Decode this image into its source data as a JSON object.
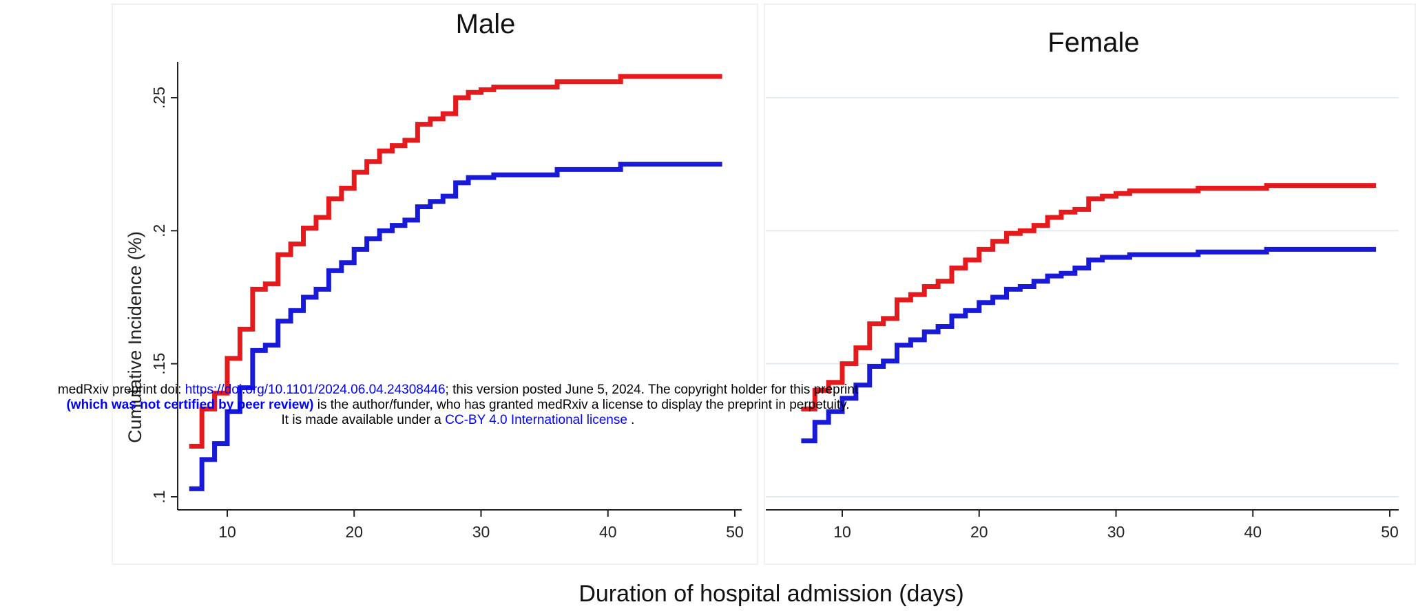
{
  "chart_data": [
    {
      "type": "line",
      "title": "Male",
      "ylabel": "Cumulative Incidence (%)",
      "xlim": [
        7,
        50
      ],
      "ylim": [
        0.1,
        0.265
      ],
      "x_ticks": [
        "10",
        "20",
        "30",
        "40",
        "50"
      ],
      "y_ticks": [
        ".1",
        ".15",
        ".2",
        ".25"
      ],
      "grid": false,
      "series": [
        {
          "color": "#e41a1c",
          "x": [
            7,
            8,
            9,
            10,
            11,
            12,
            13,
            14,
            15,
            16,
            17,
            18,
            19,
            20,
            21,
            22,
            23,
            24,
            25,
            26,
            27,
            28,
            29,
            30,
            31,
            36,
            41,
            49
          ],
          "y": [
            0.119,
            0.133,
            0.139,
            0.152,
            0.163,
            0.178,
            0.18,
            0.191,
            0.195,
            0.201,
            0.205,
            0.212,
            0.216,
            0.222,
            0.226,
            0.23,
            0.232,
            0.234,
            0.24,
            0.242,
            0.244,
            0.25,
            0.252,
            0.253,
            0.254,
            0.256,
            0.258,
            0.258
          ]
        },
        {
          "color": "#1919d8",
          "x": [
            7,
            8,
            9,
            10,
            11,
            12,
            13,
            14,
            15,
            16,
            17,
            18,
            19,
            20,
            21,
            22,
            23,
            24,
            25,
            26,
            27,
            28,
            29,
            30,
            31,
            36,
            41,
            49
          ],
          "y": [
            0.103,
            0.114,
            0.12,
            0.132,
            0.141,
            0.155,
            0.157,
            0.166,
            0.17,
            0.175,
            0.178,
            0.185,
            0.188,
            0.193,
            0.197,
            0.2,
            0.202,
            0.204,
            0.209,
            0.211,
            0.213,
            0.218,
            0.22,
            0.22,
            0.221,
            0.223,
            0.225,
            0.225
          ]
        }
      ]
    },
    {
      "type": "line",
      "title": "Female",
      "xlim": [
        7,
        50
      ],
      "ylim": [
        0.1,
        0.265
      ],
      "x_ticks": [
        "10",
        "20",
        "30",
        "40",
        "50"
      ],
      "grid": true,
      "series": [
        {
          "color": "#e41a1c",
          "x": [
            7,
            8,
            9,
            10,
            11,
            12,
            13,
            14,
            15,
            16,
            17,
            18,
            19,
            20,
            21,
            22,
            23,
            24,
            25,
            26,
            27,
            28,
            29,
            30,
            31,
            36,
            41,
            49
          ],
          "y": [
            0.133,
            0.14,
            0.143,
            0.15,
            0.156,
            0.165,
            0.167,
            0.174,
            0.176,
            0.179,
            0.181,
            0.186,
            0.189,
            0.193,
            0.196,
            0.199,
            0.2,
            0.202,
            0.205,
            0.207,
            0.208,
            0.212,
            0.213,
            0.214,
            0.215,
            0.216,
            0.217,
            0.217
          ]
        },
        {
          "color": "#1919d8",
          "x": [
            7,
            8,
            9,
            10,
            11,
            12,
            13,
            14,
            15,
            16,
            17,
            18,
            19,
            20,
            21,
            22,
            23,
            24,
            25,
            26,
            27,
            28,
            29,
            30,
            31,
            36,
            41,
            49
          ],
          "y": [
            0.121,
            0.128,
            0.132,
            0.137,
            0.142,
            0.149,
            0.151,
            0.157,
            0.159,
            0.162,
            0.164,
            0.168,
            0.17,
            0.173,
            0.175,
            0.178,
            0.179,
            0.181,
            0.183,
            0.184,
            0.186,
            0.189,
            0.19,
            0.19,
            0.191,
            0.192,
            0.193,
            0.193
          ]
        }
      ]
    }
  ],
  "figure": {
    "xlabel": "Duration of hospital admission (days)"
  },
  "watermark": {
    "line1_pre": "medRxiv preprint doi: ",
    "line1_link": "https://doi.org/10.1101/2024.06.04.24308446",
    "line1_post": "; this version posted June 5, 2024. The copyright holder for this preprint",
    "line2_bold": "(which was not certified by peer review)",
    "line2_post": " is the author/funder, who has granted medRxiv a license to display the preprint in perpetuity.",
    "line3_pre": "It is made available under a ",
    "line3_link": "CC-BY 4.0 International license",
    "line3_post": " ."
  }
}
